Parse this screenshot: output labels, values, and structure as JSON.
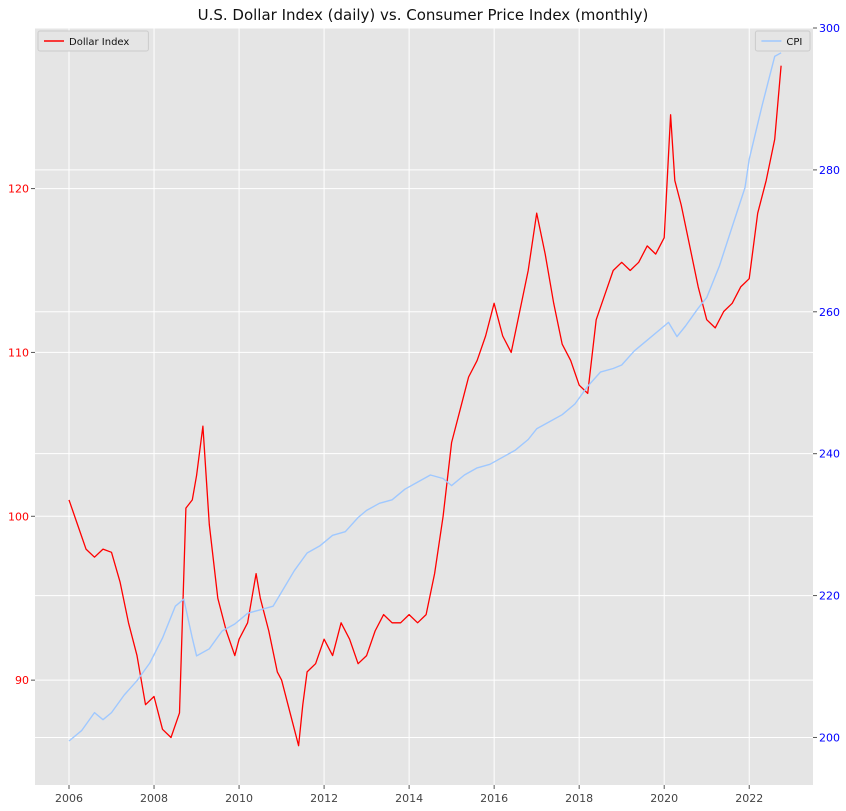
{
  "chart_data": {
    "type": "line",
    "title": "U.S. Dollar Index (daily) vs. Consumer Price Index (monthly)",
    "background_color": "#e5e5e5",
    "grid": true,
    "x_axis": {
      "ticks": [
        2006,
        2008,
        2010,
        2012,
        2014,
        2016,
        2018,
        2020,
        2022
      ],
      "range": [
        2005.2,
        2023.5
      ]
    },
    "y_axis_left": {
      "ticks": [
        90,
        100,
        110,
        120
      ],
      "range": [
        83.6,
        129.8
      ],
      "color": "#ff0000"
    },
    "y_axis_right": {
      "ticks": [
        200,
        220,
        240,
        260,
        280,
        300
      ],
      "range": [
        193.3,
        300
      ],
      "color": "#0000ff"
    },
    "series": [
      {
        "name": "Dollar Index",
        "axis": "left",
        "color": "#ff0000",
        "legend_position": "top-left",
        "x": [
          2006.0,
          2006.2,
          2006.4,
          2006.6,
          2006.8,
          2007.0,
          2007.2,
          2007.4,
          2007.6,
          2007.8,
          2008.0,
          2008.2,
          2008.4,
          2008.6,
          2008.75,
          2008.9,
          2009.0,
          2009.15,
          2009.3,
          2009.5,
          2009.7,
          2009.9,
          2010.0,
          2010.2,
          2010.4,
          2010.5,
          2010.7,
          2010.9,
          2011.0,
          2011.2,
          2011.4,
          2011.5,
          2011.6,
          2011.8,
          2012.0,
          2012.2,
          2012.4,
          2012.6,
          2012.8,
          2013.0,
          2013.2,
          2013.4,
          2013.6,
          2013.8,
          2014.0,
          2014.2,
          2014.4,
          2014.6,
          2014.8,
          2015.0,
          2015.2,
          2015.4,
          2015.6,
          2015.8,
          2016.0,
          2016.2,
          2016.4,
          2016.6,
          2016.8,
          2017.0,
          2017.2,
          2017.4,
          2017.6,
          2017.8,
          2018.0,
          2018.2,
          2018.4,
          2018.6,
          2018.8,
          2019.0,
          2019.2,
          2019.4,
          2019.6,
          2019.8,
          2020.0,
          2020.15,
          2020.25,
          2020.4,
          2020.6,
          2020.8,
          2021.0,
          2021.2,
          2021.4,
          2021.6,
          2021.8,
          2022.0,
          2022.2,
          2022.4,
          2022.6,
          2022.75
        ],
        "values": [
          101.0,
          99.5,
          98.0,
          97.5,
          98.0,
          97.8,
          96.0,
          93.5,
          91.5,
          88.5,
          89.0,
          87.0,
          86.5,
          88.0,
          100.5,
          101.0,
          102.5,
          105.5,
          99.5,
          95.0,
          93.0,
          91.5,
          92.5,
          93.5,
          96.5,
          95.0,
          93.0,
          90.5,
          90.0,
          88.0,
          86.0,
          88.5,
          90.5,
          91.0,
          92.5,
          91.5,
          93.5,
          92.5,
          91.0,
          91.5,
          93.0,
          94.0,
          93.5,
          93.5,
          94.0,
          93.5,
          94.0,
          96.5,
          100.0,
          104.5,
          106.5,
          108.5,
          109.5,
          111.0,
          113.0,
          111.0,
          110.0,
          112.5,
          115.0,
          118.5,
          116.0,
          113.0,
          110.5,
          109.5,
          108.0,
          107.5,
          112.0,
          113.5,
          115.0,
          115.5,
          115.0,
          115.5,
          116.5,
          116.0,
          117.0,
          124.5,
          120.5,
          119.0,
          116.5,
          114.0,
          112.0,
          111.5,
          112.5,
          113.0,
          114.0,
          114.5,
          118.5,
          120.5,
          123.0,
          127.5
        ]
      },
      {
        "name": "CPI",
        "axis": "right",
        "color": "#9fc8ff",
        "legend_position": "top-right",
        "x": [
          2006.0,
          2006.3,
          2006.6,
          2006.8,
          2007.0,
          2007.3,
          2007.6,
          2007.9,
          2008.2,
          2008.5,
          2008.7,
          2008.9,
          2009.0,
          2009.3,
          2009.6,
          2009.9,
          2010.2,
          2010.5,
          2010.8,
          2011.0,
          2011.3,
          2011.6,
          2011.9,
          2012.2,
          2012.5,
          2012.8,
          2013.0,
          2013.3,
          2013.6,
          2013.9,
          2014.2,
          2014.5,
          2014.8,
          2015.0,
          2015.3,
          2015.6,
          2015.9,
          2016.2,
          2016.5,
          2016.8,
          2017.0,
          2017.3,
          2017.6,
          2017.9,
          2018.2,
          2018.5,
          2018.8,
          2019.0,
          2019.3,
          2019.6,
          2019.9,
          2020.1,
          2020.3,
          2020.5,
          2020.8,
          2021.0,
          2021.3,
          2021.6,
          2021.9,
          2022.0,
          2022.3,
          2022.6,
          2022.75
        ],
        "values": [
          199.5,
          201.0,
          203.5,
          202.5,
          203.5,
          206.0,
          208.0,
          210.5,
          214.0,
          218.5,
          219.5,
          214.0,
          211.5,
          212.5,
          215.0,
          216.0,
          217.5,
          218.0,
          218.5,
          220.5,
          223.5,
          226.0,
          227.0,
          228.5,
          229.0,
          231.0,
          232.0,
          233.0,
          233.5,
          235.0,
          236.0,
          237.0,
          236.5,
          235.5,
          237.0,
          238.0,
          238.5,
          239.5,
          240.5,
          242.0,
          243.5,
          244.5,
          245.5,
          247.0,
          249.5,
          251.5,
          252.0,
          252.5,
          254.5,
          256.0,
          257.5,
          258.5,
          256.5,
          258.0,
          260.5,
          262.0,
          266.5,
          272.0,
          277.5,
          281.5,
          289.0,
          296.0,
          296.5
        ]
      }
    ]
  }
}
